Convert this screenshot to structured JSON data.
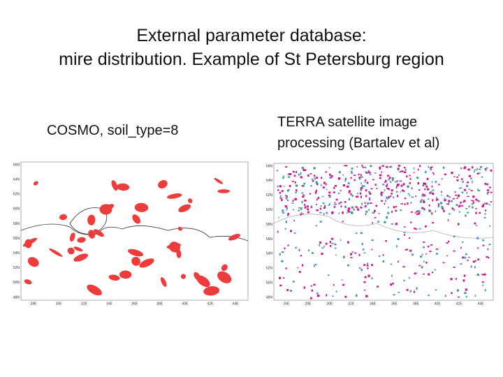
{
  "title_lines": [
    "External parameter database:",
    "mire distribution. Example of St Petersburg region"
  ],
  "left_map": {
    "caption": "COSMO, soil_type=8",
    "y_labels": [
      "66N",
      "64N",
      "62N",
      "60N",
      "58N",
      "56N",
      "54N",
      "52N",
      "50N",
      "48N"
    ],
    "x_labels": [
      "28E",
      "30E",
      "32E",
      "34E",
      "36E",
      "38E",
      "40E",
      "42E",
      "44E"
    ]
  },
  "right_map": {
    "caption_lines": [
      "TERRA satellite image",
      "processing (Bartalev et al)"
    ],
    "y_labels": [
      "66N",
      "64N",
      "62N",
      "60N",
      "58N",
      "56N",
      "54N",
      "52N",
      "50N",
      "48N"
    ],
    "x_labels": [
      "26E",
      "28E",
      "30E",
      "32E",
      "34E",
      "36E",
      "38E",
      "40E",
      "42E",
      "44E"
    ]
  }
}
